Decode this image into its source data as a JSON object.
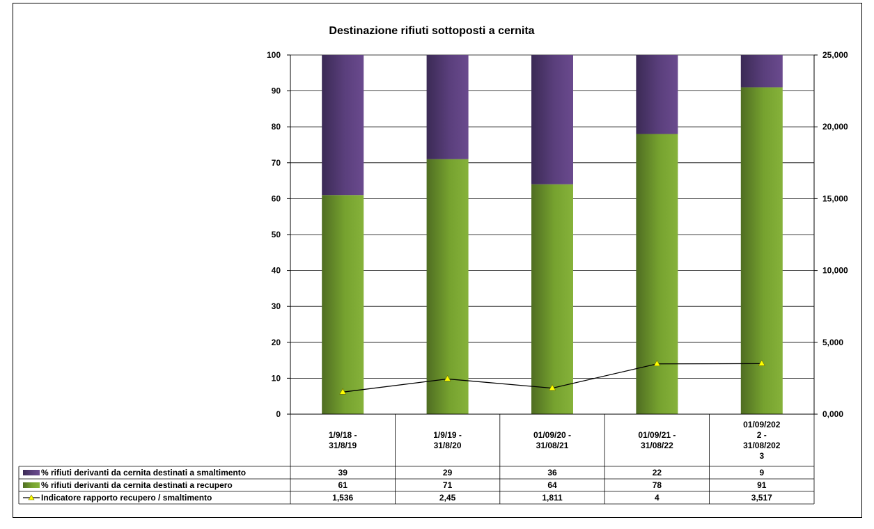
{
  "chart_data": {
    "type": "bar",
    "stacked": true,
    "title": "Destinazione rifiuti sottoposti a cernita",
    "categories": [
      [
        "1/9/18 -",
        "31/8/19"
      ],
      [
        "1/9/19 -",
        "31/8/20"
      ],
      [
        "01/09/20 -",
        "31/08/21"
      ],
      [
        "01/09/21 -",
        "31/08/22"
      ],
      [
        "01/09/202",
        "2  -",
        "31/08/202",
        "3"
      ]
    ],
    "ylim": [
      0,
      100
    ],
    "y_ticks": [
      "0",
      "10",
      "20",
      "30",
      "40",
      "50",
      "60",
      "70",
      "80",
      "90",
      "100"
    ],
    "y2lim": [
      0,
      25000
    ],
    "y2_ticks": [
      "0,000",
      "5,000",
      "10,000",
      "15,000",
      "20,000",
      "25,000"
    ],
    "grid": true,
    "legend_placement": "data-table-left",
    "series": [
      {
        "name": "% rifiuti derivanti da cernita destinati a smaltimento",
        "values": [
          39,
          29,
          36,
          22,
          9
        ],
        "labels": [
          "39",
          "29",
          "36",
          "22",
          "9"
        ],
        "color": "#5a3f7c",
        "color_dark": "#3b2a55"
      },
      {
        "name": "% rifiuti derivanti da cernita destinati a recupero",
        "values": [
          61,
          71,
          64,
          78,
          91
        ],
        "labels": [
          "61",
          "71",
          "64",
          "78",
          "91"
        ],
        "color": "#76a22f",
        "color_dark": "#4f6d22"
      },
      {
        "name": "Indicatore rapporto recupero / smaltimento",
        "type": "line",
        "axis": "secondary",
        "values": [
          1536,
          2450,
          1811,
          3500,
          3517
        ],
        "labels": [
          "1,536",
          "2,45",
          "1,811",
          "4",
          "3,517"
        ],
        "color": "#000000",
        "marker_color": "#ffff00"
      }
    ]
  }
}
